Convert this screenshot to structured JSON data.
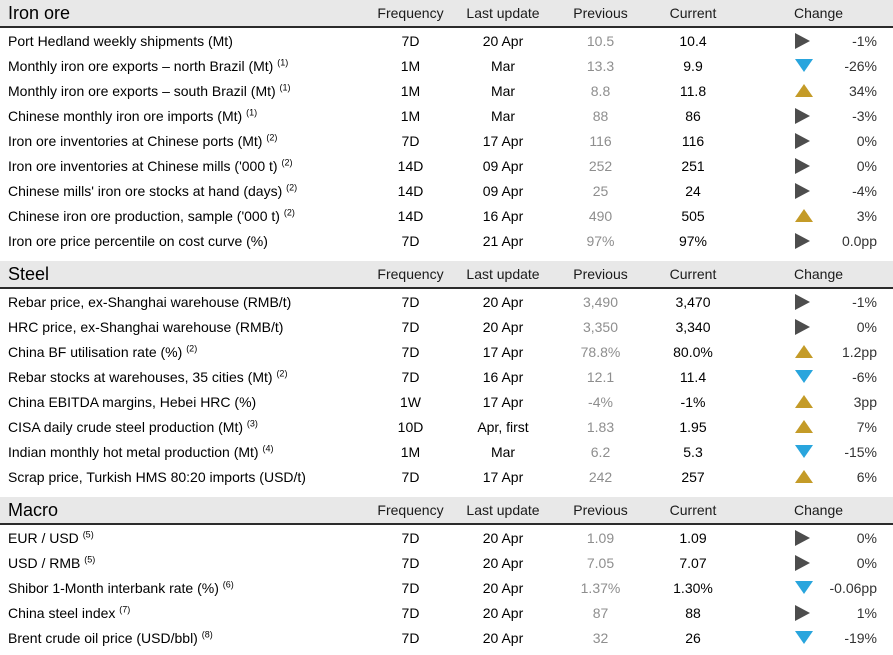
{
  "columns": {
    "frequency": "Frequency",
    "last_update": "Last update",
    "previous": "Previous",
    "current": "Current",
    "change": "Change"
  },
  "colors": {
    "up": "#c49b28",
    "down": "#29a5dd",
    "flat": "#4d4d4d",
    "header_bg": "#e8e8e8"
  },
  "sections": [
    {
      "title": "Iron ore",
      "rows": [
        {
          "label": "Port Hedland weekly shipments (Mt)",
          "footnote": "",
          "frequency": "7D",
          "last_update": "20 Apr",
          "previous": "10.5",
          "current": "10.4",
          "direction": "flat",
          "change": "-1%"
        },
        {
          "label": "Monthly iron ore exports – north Brazil (Mt)",
          "footnote": "(1)",
          "frequency": "1M",
          "last_update": "Mar",
          "previous": "13.3",
          "current": "9.9",
          "direction": "down",
          "change": "-26%"
        },
        {
          "label": "Monthly iron ore exports – south Brazil (Mt)",
          "footnote": "(1)",
          "frequency": "1M",
          "last_update": "Mar",
          "previous": "8.8",
          "current": "11.8",
          "direction": "up",
          "change": "34%"
        },
        {
          "label": "Chinese monthly iron ore imports (Mt)",
          "footnote": "(1)",
          "frequency": "1M",
          "last_update": "Mar",
          "previous": "88",
          "current": "86",
          "direction": "flat",
          "change": "-3%"
        },
        {
          "label": "Iron ore inventories at Chinese ports (Mt)",
          "footnote": "(2)",
          "frequency": "7D",
          "last_update": "17 Apr",
          "previous": "116",
          "current": "116",
          "direction": "flat",
          "change": "0%"
        },
        {
          "label": "Iron ore inventories at Chinese mills ('000 t)",
          "footnote": "(2)",
          "frequency": "14D",
          "last_update": "09 Apr",
          "previous": "252",
          "current": "251",
          "direction": "flat",
          "change": "0%"
        },
        {
          "label": "Chinese mills' iron ore stocks at hand (days)",
          "footnote": "(2)",
          "frequency": "14D",
          "last_update": "09 Apr",
          "previous": "25",
          "current": "24",
          "direction": "flat",
          "change": "-4%"
        },
        {
          "label": "Chinese iron ore production, sample ('000 t)",
          "footnote": "(2)",
          "frequency": "14D",
          "last_update": "16 Apr",
          "previous": "490",
          "current": "505",
          "direction": "up",
          "change": "3%"
        },
        {
          "label": "Iron ore price percentile on cost curve (%)",
          "footnote": "",
          "frequency": "7D",
          "last_update": "21 Apr",
          "previous": "97%",
          "current": "97%",
          "direction": "flat",
          "change": "0.0pp"
        }
      ]
    },
    {
      "title": "Steel",
      "rows": [
        {
          "label": "Rebar price, ex-Shanghai warehouse (RMB/t)",
          "footnote": "",
          "frequency": "7D",
          "last_update": "20 Apr",
          "previous": "3,490",
          "current": "3,470",
          "direction": "flat",
          "change": "-1%"
        },
        {
          "label": "HRC price, ex-Shanghai warehouse (RMB/t)",
          "footnote": "",
          "frequency": "7D",
          "last_update": "20 Apr",
          "previous": "3,350",
          "current": "3,340",
          "direction": "flat",
          "change": "0%"
        },
        {
          "label": "China BF utilisation rate (%)",
          "footnote": "(2)",
          "frequency": "7D",
          "last_update": "17 Apr",
          "previous": "78.8%",
          "current": "80.0%",
          "direction": "up",
          "change": "1.2pp"
        },
        {
          "label": "Rebar stocks at warehouses, 35 cities (Mt)",
          "footnote": "(2)",
          "frequency": "7D",
          "last_update": "16 Apr",
          "previous": "12.1",
          "current": "11.4",
          "direction": "down",
          "change": "-6%"
        },
        {
          "label": "China EBITDA margins, Hebei HRC (%)",
          "footnote": "",
          "frequency": "1W",
          "last_update": "17 Apr",
          "previous": "-4%",
          "current": "-1%",
          "direction": "up",
          "change": "3pp"
        },
        {
          "label": "CISA daily crude steel production (Mt)",
          "footnote": "(3)",
          "frequency": "10D",
          "last_update": "Apr, first",
          "previous": "1.83",
          "current": "1.95",
          "direction": "up",
          "change": "7%"
        },
        {
          "label": "Indian monthly hot metal production (Mt)",
          "footnote": "(4)",
          "frequency": "1M",
          "last_update": "Mar",
          "previous": "6.2",
          "current": "5.3",
          "direction": "down",
          "change": "-15%"
        },
        {
          "label": "Scrap price, Turkish HMS 80:20 imports (USD/t)",
          "footnote": "",
          "frequency": "7D",
          "last_update": "17 Apr",
          "previous": "242",
          "current": "257",
          "direction": "up",
          "change": "6%"
        }
      ]
    },
    {
      "title": "Macro",
      "rows": [
        {
          "label": "EUR / USD",
          "footnote": "(5)",
          "frequency": "7D",
          "last_update": "20 Apr",
          "previous": "1.09",
          "current": "1.09",
          "direction": "flat",
          "change": "0%"
        },
        {
          "label": "USD / RMB",
          "footnote": "(5)",
          "frequency": "7D",
          "last_update": "20 Apr",
          "previous": "7.05",
          "current": "7.07",
          "direction": "flat",
          "change": "0%"
        },
        {
          "label": "Shibor 1-Month interbank rate (%)",
          "footnote": "(6)",
          "frequency": "7D",
          "last_update": "20 Apr",
          "previous": "1.37%",
          "current": "1.30%",
          "direction": "down",
          "change": "-0.06pp"
        },
        {
          "label": "China steel index",
          "footnote": "(7)",
          "frequency": "7D",
          "last_update": "20 Apr",
          "previous": "87",
          "current": "88",
          "direction": "flat",
          "change": "1%"
        },
        {
          "label": "Brent crude oil price (USD/bbl)",
          "footnote": "(8)",
          "frequency": "7D",
          "last_update": "20 Apr",
          "previous": "32",
          "current": "26",
          "direction": "down",
          "change": "-19%"
        }
      ]
    }
  ]
}
